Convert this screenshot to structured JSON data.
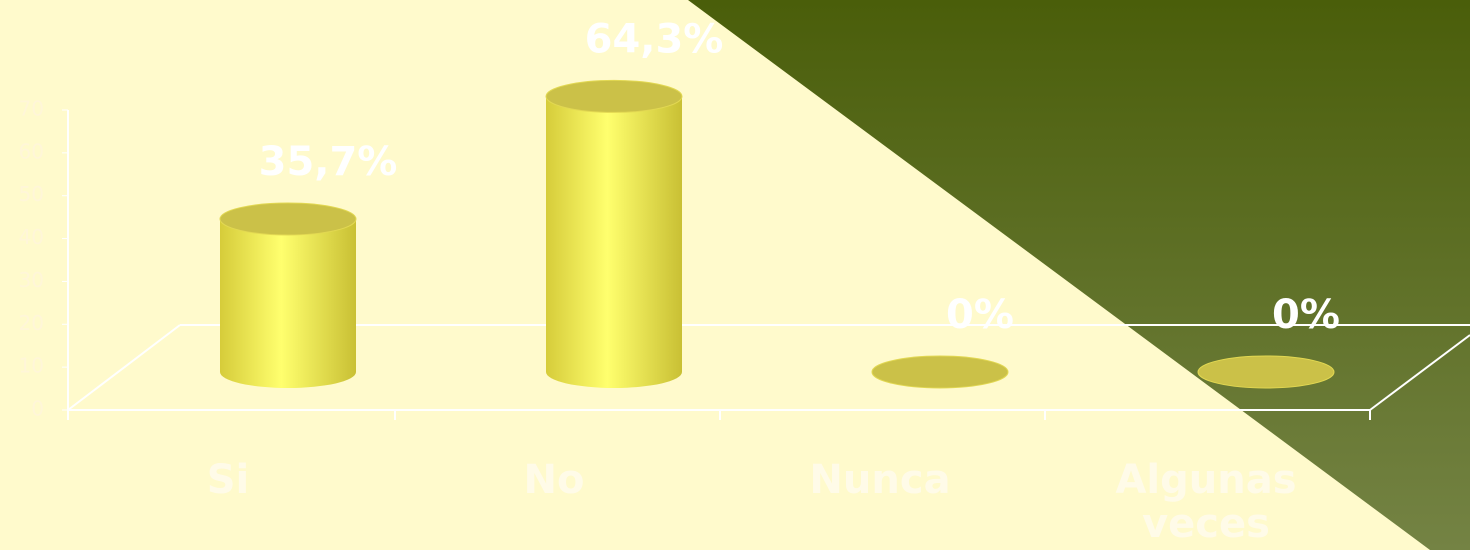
{
  "chart_data": {
    "type": "cylinder",
    "categories": [
      "Si",
      "No",
      "Nunca",
      "Algunas veces"
    ],
    "values": [
      35.7,
      64.3,
      0,
      0
    ],
    "value_labels": [
      "35,7%",
      "64,3%",
      "0%",
      "0%"
    ],
    "color": "#ffff66",
    "ylim": [
      0,
      70
    ],
    "yticks": [
      0,
      10,
      20,
      30,
      40,
      50,
      60,
      70
    ],
    "grid": false
  }
}
